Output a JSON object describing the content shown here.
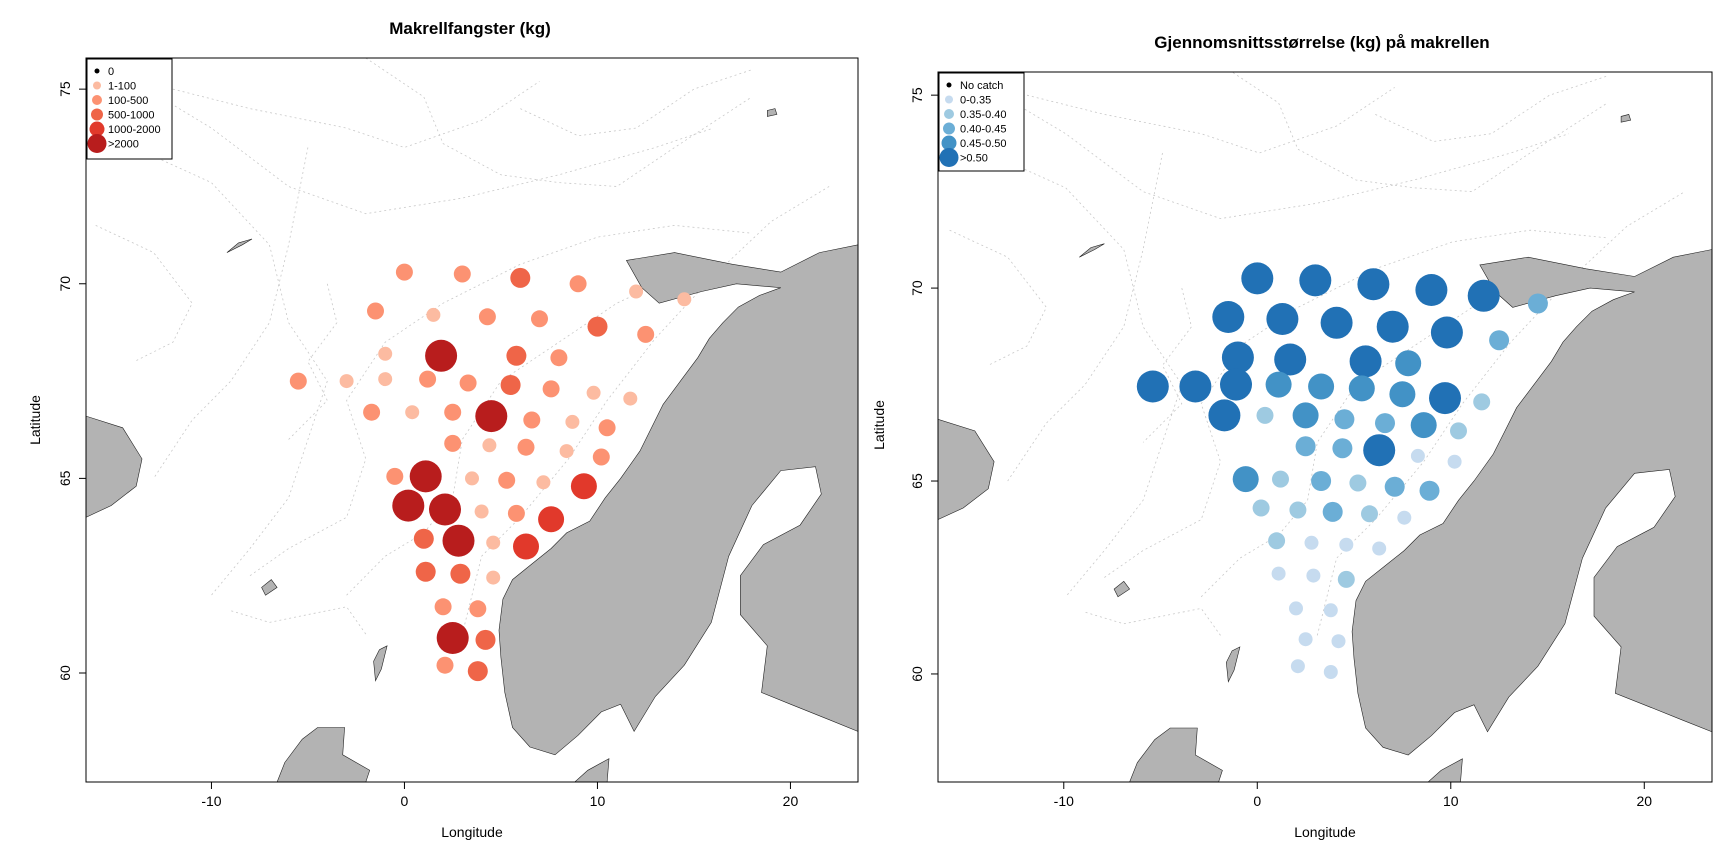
{
  "maps": [
    {
      "title": "Makrellfangster (kg)",
      "xlabel": "Longitude",
      "ylabel": "Latitude",
      "xticks": [
        -10,
        0,
        10,
        20
      ],
      "yticks": [
        60,
        65,
        70,
        75
      ],
      "xlim": [
        -16.5,
        23.5
      ],
      "ylim": [
        57.2,
        75.8
      ],
      "legend": {
        "position": "top-left",
        "items": [
          {
            "label": "0",
            "color": "#000000",
            "size": 0
          },
          {
            "label": "1-100",
            "color": "#fcbba1",
            "size": 1
          },
          {
            "label": "100-500",
            "color": "#fc9272",
            "size": 2
          },
          {
            "label": "500-1000",
            "color": "#ef6548",
            "size": 3
          },
          {
            "label": "1000-2000",
            "color": "#e1392b",
            "size": 4
          },
          {
            "label": ">2000",
            "color": "#b81d1d",
            "size": 5
          }
        ]
      },
      "stations": [
        {
          "lon": 0,
          "lat": 70.3,
          "cls": 2
        },
        {
          "lon": 3,
          "lat": 70.25,
          "cls": 2
        },
        {
          "lon": 6,
          "lat": 70.15,
          "cls": 3
        },
        {
          "lon": 9,
          "lat": 70.0,
          "cls": 2
        },
        {
          "lon": 12,
          "lat": 69.8,
          "cls": 1
        },
        {
          "lon": 14.5,
          "lat": 69.6,
          "cls": 1
        },
        {
          "lon": -1.5,
          "lat": 69.3,
          "cls": 2
        },
        {
          "lon": 1.5,
          "lat": 69.2,
          "cls": 1
        },
        {
          "lon": 4.3,
          "lat": 69.15,
          "cls": 2
        },
        {
          "lon": 7,
          "lat": 69.1,
          "cls": 2
        },
        {
          "lon": 10,
          "lat": 68.9,
          "cls": 3
        },
        {
          "lon": 12.5,
          "lat": 68.7,
          "cls": 2
        },
        {
          "lon": -1,
          "lat": 68.2,
          "cls": 1
        },
        {
          "lon": 1.9,
          "lat": 68.15,
          "cls": 5
        },
        {
          "lon": 5.8,
          "lat": 68.15,
          "cls": 3
        },
        {
          "lon": 8,
          "lat": 68.1,
          "cls": 2
        },
        {
          "lon": -5.5,
          "lat": 67.5,
          "cls": 2
        },
        {
          "lon": -3,
          "lat": 67.5,
          "cls": 1
        },
        {
          "lon": -1,
          "lat": 67.55,
          "cls": 1
        },
        {
          "lon": 1.2,
          "lat": 67.55,
          "cls": 2
        },
        {
          "lon": 3.3,
          "lat": 67.45,
          "cls": 2
        },
        {
          "lon": 5.5,
          "lat": 67.4,
          "cls": 3
        },
        {
          "lon": 7.6,
          "lat": 67.3,
          "cls": 2
        },
        {
          "lon": 9.8,
          "lat": 67.2,
          "cls": 1
        },
        {
          "lon": 11.7,
          "lat": 67.05,
          "cls": 1
        },
        {
          "lon": -1.7,
          "lat": 66.7,
          "cls": 2
        },
        {
          "lon": 0.4,
          "lat": 66.7,
          "cls": 1
        },
        {
          "lon": 2.5,
          "lat": 66.7,
          "cls": 2
        },
        {
          "lon": 4.5,
          "lat": 66.6,
          "cls": 5
        },
        {
          "lon": 6.6,
          "lat": 66.5,
          "cls": 2
        },
        {
          "lon": 8.7,
          "lat": 66.45,
          "cls": 1
        },
        {
          "lon": 10.5,
          "lat": 66.3,
          "cls": 2
        },
        {
          "lon": 2.5,
          "lat": 65.9,
          "cls": 2
        },
        {
          "lon": 4.4,
          "lat": 65.85,
          "cls": 1
        },
        {
          "lon": 6.3,
          "lat": 65.8,
          "cls": 2
        },
        {
          "lon": 8.4,
          "lat": 65.7,
          "cls": 1
        },
        {
          "lon": 10.2,
          "lat": 65.55,
          "cls": 2
        },
        {
          "lon": -0.5,
          "lat": 65.05,
          "cls": 2
        },
        {
          "lon": 1.1,
          "lat": 65.05,
          "cls": 5
        },
        {
          "lon": 3.5,
          "lat": 65.0,
          "cls": 1
        },
        {
          "lon": 5.3,
          "lat": 64.95,
          "cls": 2
        },
        {
          "lon": 7.2,
          "lat": 64.9,
          "cls": 1
        },
        {
          "lon": 9.3,
          "lat": 64.8,
          "cls": 4
        },
        {
          "lon": 0.2,
          "lat": 64.3,
          "cls": 5
        },
        {
          "lon": 2.1,
          "lat": 64.2,
          "cls": 5
        },
        {
          "lon": 4,
          "lat": 64.15,
          "cls": 1
        },
        {
          "lon": 5.8,
          "lat": 64.1,
          "cls": 2
        },
        {
          "lon": 7.6,
          "lat": 63.95,
          "cls": 4
        },
        {
          "lon": 1,
          "lat": 63.45,
          "cls": 3
        },
        {
          "lon": 2.8,
          "lat": 63.4,
          "cls": 5
        },
        {
          "lon": 4.6,
          "lat": 63.35,
          "cls": 1
        },
        {
          "lon": 6.3,
          "lat": 63.25,
          "cls": 4
        },
        {
          "lon": 1.1,
          "lat": 62.6,
          "cls": 3
        },
        {
          "lon": 2.9,
          "lat": 62.55,
          "cls": 3
        },
        {
          "lon": 4.6,
          "lat": 62.45,
          "cls": 1
        },
        {
          "lon": 2,
          "lat": 61.7,
          "cls": 2
        },
        {
          "lon": 3.8,
          "lat": 61.65,
          "cls": 2
        },
        {
          "lon": 2.5,
          "lat": 60.9,
          "cls": 5
        },
        {
          "lon": 4.2,
          "lat": 60.85,
          "cls": 3
        },
        {
          "lon": 2.1,
          "lat": 60.2,
          "cls": 2
        },
        {
          "lon": 3.8,
          "lat": 60.05,
          "cls": 3
        }
      ]
    },
    {
      "title": "Gjennomsnittsstørrelse (kg) på makrellen",
      "xlabel": "Longitude",
      "ylabel": "Latitude",
      "xticks": [
        -10,
        0,
        10,
        20
      ],
      "yticks": [
        60,
        65,
        70,
        75
      ],
      "xlim": [
        -16.5,
        23.5
      ],
      "ylim": [
        57.2,
        75.6
      ],
      "legend": {
        "position": "top-left",
        "items": [
          {
            "label": "No catch",
            "color": "#000000",
            "size": 0
          },
          {
            "label": "0-0.35",
            "color": "#c6dbef",
            "size": 1
          },
          {
            "label": "0.35-0.40",
            "color": "#9ecae1",
            "size": 2
          },
          {
            "label": "0.40-0.45",
            "color": "#6baed6",
            "size": 3
          },
          {
            "label": "0.45-0.50",
            "color": "#4292c6",
            "size": 4
          },
          {
            "label": ">0.50",
            "color": "#2171b5",
            "size": 5
          }
        ]
      },
      "stations": [
        {
          "lon": 0,
          "lat": 70.25,
          "cls": 5
        },
        {
          "lon": 3,
          "lat": 70.2,
          "cls": 5
        },
        {
          "lon": 6,
          "lat": 70.1,
          "cls": 5
        },
        {
          "lon": 9,
          "lat": 69.95,
          "cls": 5
        },
        {
          "lon": 11.7,
          "lat": 69.8,
          "cls": 5
        },
        {
          "lon": 14.5,
          "lat": 69.6,
          "cls": 3
        },
        {
          "lon": -1.5,
          "lat": 69.25,
          "cls": 5
        },
        {
          "lon": 1.3,
          "lat": 69.2,
          "cls": 5
        },
        {
          "lon": 4.1,
          "lat": 69.1,
          "cls": 5
        },
        {
          "lon": 7,
          "lat": 69.0,
          "cls": 5
        },
        {
          "lon": 9.8,
          "lat": 68.85,
          "cls": 5
        },
        {
          "lon": 12.5,
          "lat": 68.65,
          "cls": 3
        },
        {
          "lon": -1,
          "lat": 68.2,
          "cls": 5
        },
        {
          "lon": 1.7,
          "lat": 68.15,
          "cls": 5
        },
        {
          "lon": 5.6,
          "lat": 68.1,
          "cls": 5
        },
        {
          "lon": 7.8,
          "lat": 68.05,
          "cls": 4
        },
        {
          "lon": -5.4,
          "lat": 67.45,
          "cls": 5
        },
        {
          "lon": -3.2,
          "lat": 67.45,
          "cls": 5
        },
        {
          "lon": -1.1,
          "lat": 67.5,
          "cls": 5
        },
        {
          "lon": 1.1,
          "lat": 67.5,
          "cls": 4
        },
        {
          "lon": 3.3,
          "lat": 67.45,
          "cls": 4
        },
        {
          "lon": 5.4,
          "lat": 67.4,
          "cls": 4
        },
        {
          "lon": 7.5,
          "lat": 67.25,
          "cls": 4
        },
        {
          "lon": 9.7,
          "lat": 67.15,
          "cls": 5
        },
        {
          "lon": 11.6,
          "lat": 67.05,
          "cls": 2
        },
        {
          "lon": -1.7,
          "lat": 66.7,
          "cls": 5
        },
        {
          "lon": 0.4,
          "lat": 66.7,
          "cls": 2
        },
        {
          "lon": 2.5,
          "lat": 66.7,
          "cls": 4
        },
        {
          "lon": 4.5,
          "lat": 66.6,
          "cls": 3
        },
        {
          "lon": 6.6,
          "lat": 66.5,
          "cls": 3
        },
        {
          "lon": 8.6,
          "lat": 66.45,
          "cls": 4
        },
        {
          "lon": 10.4,
          "lat": 66.3,
          "cls": 2
        },
        {
          "lon": 2.5,
          "lat": 65.9,
          "cls": 3
        },
        {
          "lon": 4.4,
          "lat": 65.85,
          "cls": 3
        },
        {
          "lon": 6.3,
          "lat": 65.8,
          "cls": 5
        },
        {
          "lon": 8.3,
          "lat": 65.65,
          "cls": 1
        },
        {
          "lon": 10.2,
          "lat": 65.5,
          "cls": 1
        },
        {
          "lon": -0.6,
          "lat": 65.05,
          "cls": 4
        },
        {
          "lon": 1.2,
          "lat": 65.05,
          "cls": 2
        },
        {
          "lon": 3.3,
          "lat": 65.0,
          "cls": 3
        },
        {
          "lon": 5.2,
          "lat": 64.95,
          "cls": 2
        },
        {
          "lon": 7.1,
          "lat": 64.85,
          "cls": 3
        },
        {
          "lon": 8.9,
          "lat": 64.75,
          "cls": 3
        },
        {
          "lon": 0.2,
          "lat": 64.3,
          "cls": 2
        },
        {
          "lon": 2.1,
          "lat": 64.25,
          "cls": 2
        },
        {
          "lon": 3.9,
          "lat": 64.2,
          "cls": 3
        },
        {
          "lon": 5.8,
          "lat": 64.15,
          "cls": 2
        },
        {
          "lon": 7.6,
          "lat": 64.05,
          "cls": 1
        },
        {
          "lon": 1,
          "lat": 63.45,
          "cls": 2
        },
        {
          "lon": 2.8,
          "lat": 63.4,
          "cls": 1
        },
        {
          "lon": 4.6,
          "lat": 63.35,
          "cls": 1
        },
        {
          "lon": 6.3,
          "lat": 63.25,
          "cls": 1
        },
        {
          "lon": 1.1,
          "lat": 62.6,
          "cls": 1
        },
        {
          "lon": 2.9,
          "lat": 62.55,
          "cls": 1
        },
        {
          "lon": 4.6,
          "lat": 62.45,
          "cls": 2
        },
        {
          "lon": 2,
          "lat": 61.7,
          "cls": 1
        },
        {
          "lon": 3.8,
          "lat": 61.65,
          "cls": 1
        },
        {
          "lon": 2.5,
          "lat": 60.9,
          "cls": 1
        },
        {
          "lon": 4.2,
          "lat": 60.85,
          "cls": 1
        },
        {
          "lon": 2.1,
          "lat": 60.2,
          "cls": 1
        },
        {
          "lon": 3.8,
          "lat": 60.05,
          "cls": 1
        }
      ]
    }
  ]
}
